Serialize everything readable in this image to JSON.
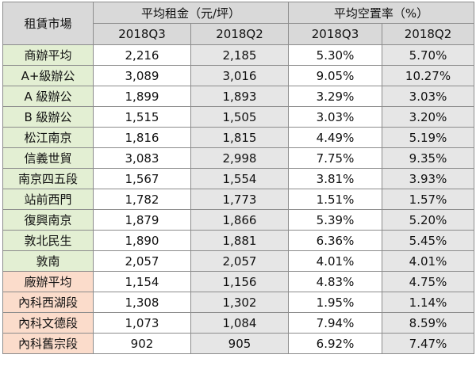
{
  "header": {
    "market": "租賃市場",
    "rent_group": "平均租金（元/坪）",
    "vacancy_group": "平均空置率（%）",
    "rent_q3": "2018Q3",
    "rent_q2": "2018Q2",
    "vac_q3": "2018Q3",
    "vac_q2": "2018Q2"
  },
  "colors": {
    "office_market": "#e3efd3",
    "factory_market": "#fbdccb",
    "header": "#d9d9d9",
    "q2_column": "#e6e6e6"
  },
  "rows": [
    {
      "market": "商辦平均",
      "group": "office",
      "rent_q3": "2,216",
      "rent_q2": "2,185",
      "vac_q3": "5.30%",
      "vac_q2": "5.70%"
    },
    {
      "market": "A+級辦公",
      "group": "office",
      "rent_q3": "3,089",
      "rent_q2": "3,016",
      "vac_q3": "9.05%",
      "vac_q2": "10.27%"
    },
    {
      "market": "A 級辦公",
      "group": "office",
      "rent_q3": "1,899",
      "rent_q2": "1,893",
      "vac_q3": "3.29%",
      "vac_q2": "3.03%"
    },
    {
      "market": "B 級辦公",
      "group": "office",
      "rent_q3": "1,515",
      "rent_q2": "1,505",
      "vac_q3": "3.03%",
      "vac_q2": "3.20%"
    },
    {
      "market": "松江南京",
      "group": "office",
      "rent_q3": "1,816",
      "rent_q2": "1,815",
      "vac_q3": "4.49%",
      "vac_q2": "5.19%"
    },
    {
      "market": "信義世貿",
      "group": "office",
      "rent_q3": "3,083",
      "rent_q2": "2,998",
      "vac_q3": "7.75%",
      "vac_q2": "9.35%"
    },
    {
      "market": "南京四五段",
      "group": "office",
      "rent_q3": "1,567",
      "rent_q2": "1,554",
      "vac_q3": "3.81%",
      "vac_q2": "3.93%"
    },
    {
      "market": "站前西門",
      "group": "office",
      "rent_q3": "1,782",
      "rent_q2": "1,773",
      "vac_q3": "1.51%",
      "vac_q2": "1.57%"
    },
    {
      "market": "復興南京",
      "group": "office",
      "rent_q3": "1,879",
      "rent_q2": "1,866",
      "vac_q3": "5.39%",
      "vac_q2": "5.20%"
    },
    {
      "market": "敦北民生",
      "group": "office",
      "rent_q3": "1,890",
      "rent_q2": "1,881",
      "vac_q3": "6.36%",
      "vac_q2": "5.45%"
    },
    {
      "market": "敦南",
      "group": "office",
      "rent_q3": "2,057",
      "rent_q2": "2,057",
      "vac_q3": "4.01%",
      "vac_q2": "4.01%"
    },
    {
      "market": "廠辦平均",
      "group": "factory",
      "rent_q3": "1,154",
      "rent_q2": "1,156",
      "vac_q3": "4.83%",
      "vac_q2": "4.75%"
    },
    {
      "market": "內科西湖段",
      "group": "factory",
      "rent_q3": "1,308",
      "rent_q2": "1,302",
      "vac_q3": "1.95%",
      "vac_q2": "1.14%"
    },
    {
      "market": "內科文德段",
      "group": "factory",
      "rent_q3": "1,073",
      "rent_q2": "1,084",
      "vac_q3": "7.94%",
      "vac_q2": "8.59%"
    },
    {
      "market": "內科舊宗段",
      "group": "factory",
      "rent_q3": "902",
      "rent_q2": "905",
      "vac_q3": "6.92%",
      "vac_q2": "7.47%"
    }
  ]
}
